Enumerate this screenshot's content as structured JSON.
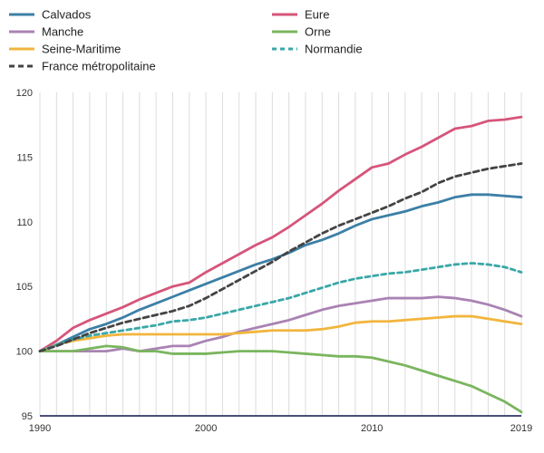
{
  "chart_data": {
    "type": "line",
    "title": "",
    "xlabel": "",
    "ylabel": "",
    "xlim": [
      1990,
      2019
    ],
    "ylim": [
      95,
      120
    ],
    "x_ticks": [
      "1990",
      "2000",
      "2010",
      "2019"
    ],
    "y_ticks": [
      "95",
      "100",
      "105",
      "110",
      "115",
      "120"
    ],
    "grid": {
      "vertical": true,
      "horizontal": false
    },
    "legend": {
      "placement": "top",
      "columns": 2
    },
    "x": [
      1990,
      1991,
      1992,
      1993,
      1994,
      1995,
      1996,
      1997,
      1998,
      1999,
      2000,
      2001,
      2002,
      2003,
      2004,
      2005,
      2006,
      2007,
      2008,
      2009,
      2010,
      2011,
      2012,
      2013,
      2014,
      2015,
      2016,
      2017,
      2018,
      2019
    ],
    "series": [
      {
        "name": "Calvados",
        "color": "#3c7fa6",
        "dash": "solid",
        "values": [
          100,
          100.5,
          101.1,
          101.7,
          102.1,
          102.6,
          103.2,
          103.7,
          104.2,
          104.7,
          105.2,
          105.7,
          106.2,
          106.7,
          107.1,
          107.6,
          108.2,
          108.6,
          109.1,
          109.7,
          110.2,
          110.5,
          110.8,
          111.2,
          111.5,
          111.9,
          112.1,
          112.1,
          112.0,
          111.9
        ]
      },
      {
        "name": "Eure",
        "color": "#d6557a",
        "dash": "solid",
        "values": [
          100,
          100.8,
          101.8,
          102.4,
          102.9,
          103.4,
          104.0,
          104.5,
          105.0,
          105.3,
          106.1,
          106.8,
          107.5,
          108.2,
          108.8,
          109.6,
          110.5,
          111.4,
          112.4,
          113.3,
          114.2,
          114.5,
          115.2,
          115.8,
          116.5,
          117.2,
          117.4,
          117.8,
          117.9,
          118.1
        ]
      },
      {
        "name": "Manche",
        "color": "#a983b3",
        "dash": "solid",
        "values": [
          100,
          100.0,
          100.0,
          100.0,
          100.0,
          100.2,
          100.0,
          100.2,
          100.4,
          100.4,
          100.8,
          101.1,
          101.5,
          101.8,
          102.1,
          102.4,
          102.8,
          103.2,
          103.5,
          103.7,
          103.9,
          104.1,
          104.1,
          104.1,
          104.2,
          104.1,
          103.9,
          103.6,
          103.2,
          102.7
        ]
      },
      {
        "name": "Orne",
        "color": "#7ab55e",
        "dash": "solid",
        "values": [
          100,
          100.0,
          100.0,
          100.2,
          100.4,
          100.3,
          100.0,
          100.0,
          99.8,
          99.8,
          99.8,
          99.9,
          100.0,
          100.0,
          100.0,
          99.9,
          99.8,
          99.7,
          99.6,
          99.6,
          99.5,
          99.2,
          98.9,
          98.5,
          98.1,
          97.7,
          97.3,
          96.7,
          96.1,
          95.3
        ]
      },
      {
        "name": "Seine-Maritime",
        "color": "#f2b53d",
        "dash": "solid",
        "values": [
          100,
          100.5,
          100.8,
          101.0,
          101.2,
          101.3,
          101.3,
          101.3,
          101.3,
          101.3,
          101.3,
          101.3,
          101.4,
          101.5,
          101.6,
          101.6,
          101.6,
          101.7,
          101.9,
          102.2,
          102.3,
          102.3,
          102.4,
          102.5,
          102.6,
          102.7,
          102.7,
          102.5,
          102.3,
          102.1
        ]
      },
      {
        "name": "Normandie",
        "color": "#3aa7a7",
        "dash": "dotted",
        "values": [
          100,
          100.5,
          100.9,
          101.2,
          101.4,
          101.6,
          101.8,
          102.0,
          102.3,
          102.4,
          102.6,
          102.9,
          103.2,
          103.5,
          103.8,
          104.1,
          104.5,
          104.9,
          105.3,
          105.6,
          105.8,
          106.0,
          106.1,
          106.3,
          106.5,
          106.7,
          106.8,
          106.7,
          106.5,
          106.1
        ]
      },
      {
        "name": "France métropolitaine",
        "color": "#444444",
        "dash": "dashed",
        "values": [
          100,
          100.4,
          100.9,
          101.4,
          101.8,
          102.2,
          102.5,
          102.8,
          103.1,
          103.5,
          104.1,
          104.8,
          105.5,
          106.2,
          106.9,
          107.7,
          108.4,
          109.1,
          109.7,
          110.2,
          110.7,
          111.2,
          111.8,
          112.3,
          113.0,
          113.5,
          113.8,
          114.1,
          114.3,
          114.5
        ]
      }
    ]
  }
}
